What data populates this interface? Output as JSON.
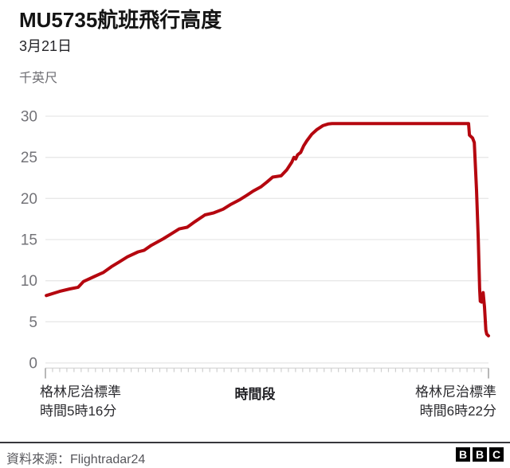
{
  "header": {
    "title": "MU5735航班飛行高度",
    "subtitle": "3月21日",
    "unit_label": "千英尺"
  },
  "x_axis": {
    "start_label_line1": "格林尼治標準",
    "start_label_line2": "時間5時16分",
    "mid_label": "時間段",
    "end_label_line1": "格林尼治標準",
    "end_label_line2": "時間6時22分"
  },
  "footer": {
    "source_label": "資料來源：",
    "source_value": "Flightradar24",
    "logo_letters": [
      "B",
      "B",
      "C"
    ]
  },
  "colors": {
    "line": "#b5070f",
    "grid": "#e8e8e8",
    "axis_baseline": "#d6d6d6",
    "axis_minor_tick": "#cfcfcf",
    "axis_end_tick": "#a6a6a6",
    "tick_label": "#737378"
  },
  "chart_data": {
    "type": "line",
    "title": "MU5735航班飛行高度",
    "subtitle": "3月21日",
    "ylabel": "千英尺",
    "xlabel": "時間段",
    "x_start_label": "格林尼治標準時間5時16分",
    "x_end_label": "格林尼治標準時間6時22分",
    "ylim": [
      0,
      30
    ],
    "yticks": [
      0,
      5,
      10,
      15,
      20,
      25,
      30
    ],
    "grid": "horizontal",
    "legend": "none",
    "source": "Flightradar24",
    "x_units": "percent_of_time_axis",
    "y_units": "thousand_feet",
    "series": [
      {
        "name": "altitude",
        "points": [
          [
            0.2,
            8.2
          ],
          [
            3.2,
            8.7
          ],
          [
            5.5,
            9.0
          ],
          [
            7.4,
            9.2
          ],
          [
            8.6,
            9.9
          ],
          [
            11.0,
            10.5
          ],
          [
            13.1,
            11.0
          ],
          [
            14.9,
            11.7
          ],
          [
            16.7,
            12.3
          ],
          [
            18.5,
            12.9
          ],
          [
            20.9,
            13.5
          ],
          [
            22.3,
            13.7
          ],
          [
            23.9,
            14.3
          ],
          [
            26.6,
            15.1
          ],
          [
            28.4,
            15.7
          ],
          [
            30.2,
            16.3
          ],
          [
            32.0,
            16.5
          ],
          [
            33.8,
            17.2
          ],
          [
            36.0,
            18.0
          ],
          [
            38.0,
            18.25
          ],
          [
            40.1,
            18.7
          ],
          [
            41.9,
            19.3
          ],
          [
            43.7,
            19.8
          ],
          [
            45.5,
            20.4
          ],
          [
            46.9,
            20.9
          ],
          [
            48.6,
            21.4
          ],
          [
            50.0,
            22.0
          ],
          [
            51.3,
            22.6
          ],
          [
            53.2,
            22.75
          ],
          [
            54.5,
            23.5
          ],
          [
            55.6,
            24.4
          ],
          [
            56.1,
            25.0
          ],
          [
            56.5,
            24.8
          ],
          [
            56.9,
            25.3
          ],
          [
            57.6,
            25.6
          ],
          [
            58.3,
            26.4
          ],
          [
            59.0,
            27.0
          ],
          [
            60.1,
            27.8
          ],
          [
            61.2,
            28.35
          ],
          [
            62.6,
            28.85
          ],
          [
            63.8,
            29.05
          ],
          [
            64.7,
            29.1
          ],
          [
            95.5,
            29.1
          ],
          [
            95.7,
            27.7
          ],
          [
            96.4,
            27.35
          ],
          [
            96.8,
            26.8
          ],
          [
            97.3,
            21.0
          ],
          [
            97.7,
            15.0
          ],
          [
            98.0,
            9.0
          ],
          [
            98.15,
            7.5
          ],
          [
            98.45,
            7.4
          ],
          [
            98.8,
            8.55
          ],
          [
            99.1,
            6.8
          ],
          [
            99.4,
            4.0
          ],
          [
            99.6,
            3.5
          ],
          [
            100.0,
            3.3
          ]
        ]
      }
    ]
  }
}
